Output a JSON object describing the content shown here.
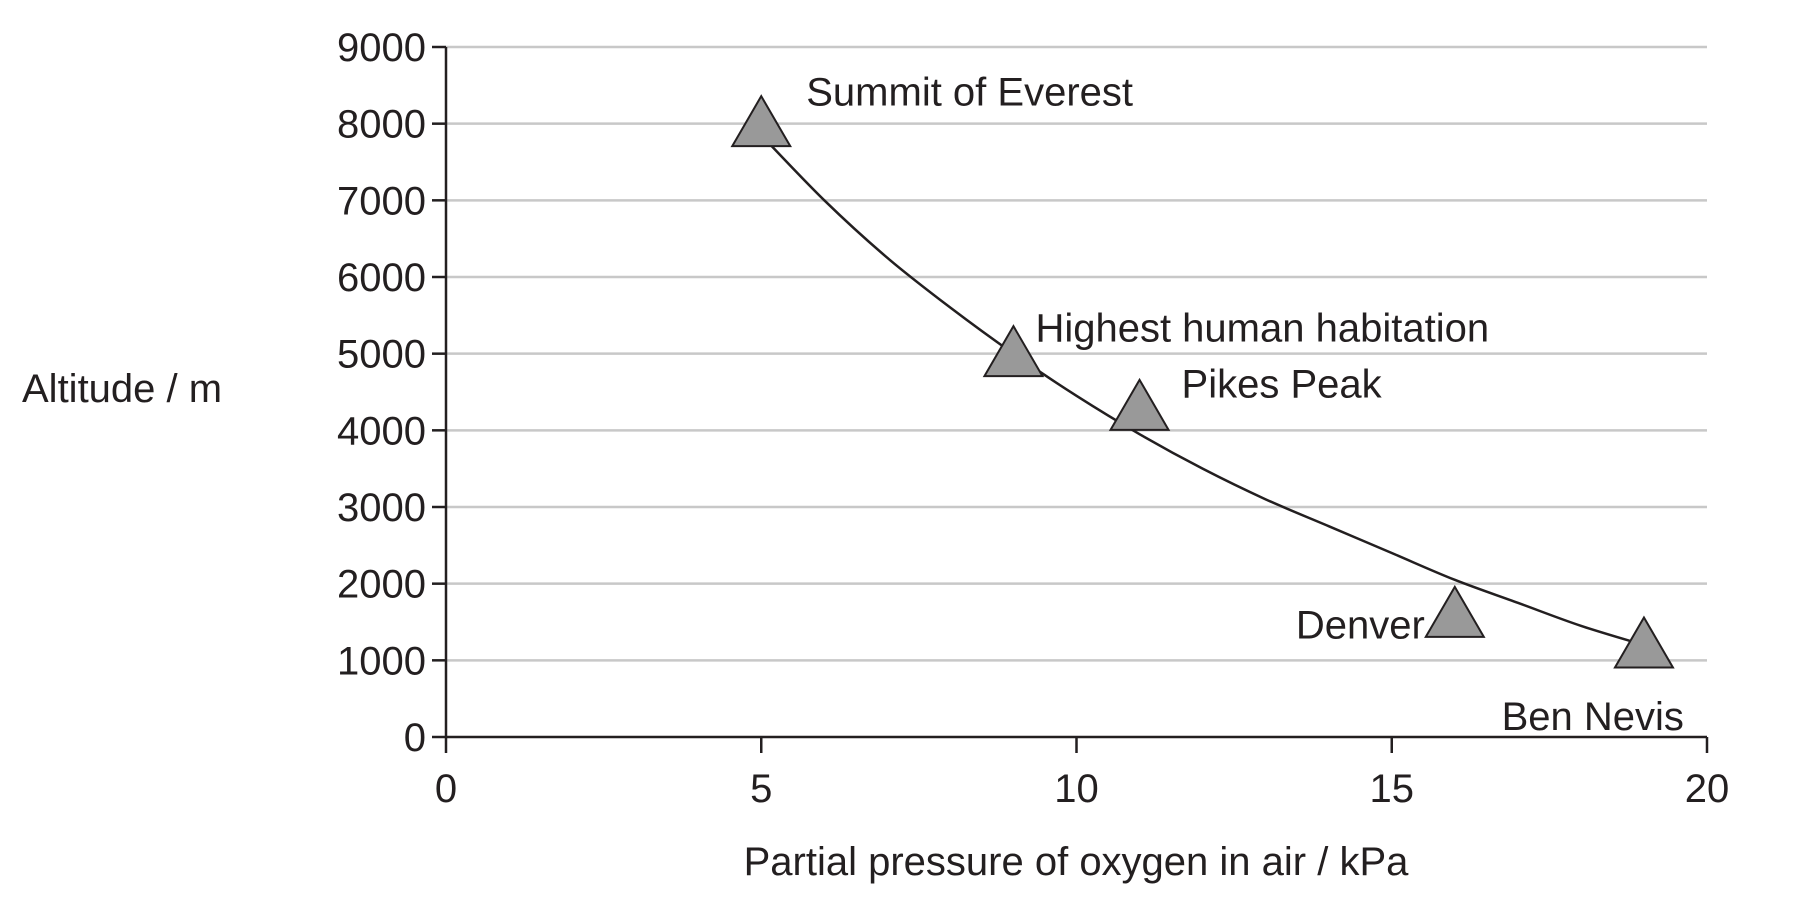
{
  "chart_data": {
    "type": "scatter",
    "title": "",
    "xlabel": "Partial pressure of oxygen in air / kPa",
    "ylabel": "Altitude / m",
    "xlim": [
      0,
      20
    ],
    "ylim": [
      0,
      9000
    ],
    "x_ticks": [
      "0",
      "5",
      "10",
      "15",
      "20"
    ],
    "y_ticks": [
      "0",
      "1000",
      "2000",
      "3000",
      "4000",
      "5000",
      "6000",
      "7000",
      "8000",
      "9000"
    ],
    "grid": "horizontal",
    "points": [
      {
        "label": "Summit of Everest",
        "x": 5,
        "y": 8000
      },
      {
        "label": "Highest human habitation",
        "x": 9,
        "y": 5000
      },
      {
        "label": "Pikes Peak",
        "x": 11,
        "y": 4300
      },
      {
        "label": "Denver",
        "x": 16,
        "y": 1600
      },
      {
        "label": "Ben Nevis",
        "x": 19,
        "y": 1200
      }
    ],
    "curve": {
      "x": [
        5,
        6,
        7,
        8,
        9,
        10,
        11,
        12,
        13,
        14,
        15,
        16,
        17,
        18,
        19
      ],
      "y": [
        7850,
        7000,
        6250,
        5600,
        5000,
        4450,
        3950,
        3500,
        3100,
        2750,
        2400,
        2050,
        1750,
        1450,
        1200
      ]
    },
    "colors": {
      "marker_fill": "#999999",
      "ink": "#231f20",
      "grid": "#c8c8c8"
    }
  }
}
